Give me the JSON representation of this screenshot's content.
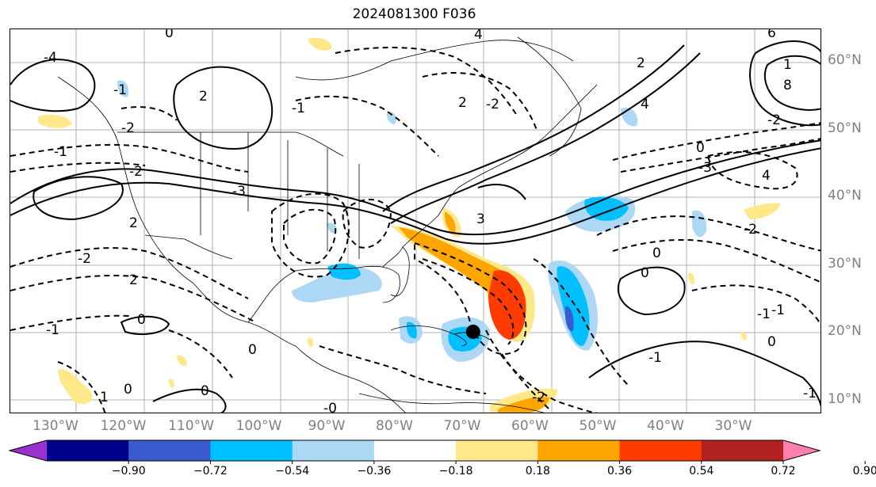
{
  "title": "2024081300 F036",
  "map": {
    "lon_labels": [
      "130°W",
      "120°W",
      "110°W",
      "100°W",
      "90°W",
      "80°W",
      "70°W",
      "60°W",
      "50°W",
      "40°W",
      "30°W"
    ],
    "lat_labels": [
      "60°N",
      "50°N",
      "40°N",
      "30°N",
      "20°N",
      "10°N"
    ],
    "contour_labels": [
      "-4",
      "-2",
      "0",
      "2",
      "-1",
      "-2",
      "-3",
      "4",
      "2",
      "-2",
      "-1",
      "3",
      "0",
      "2",
      "-2",
      "1",
      "-3",
      "4",
      "-2",
      "0",
      "-1",
      "0",
      "-1",
      "-1",
      "0",
      "1",
      "0",
      "6",
      "8",
      "4",
      "2",
      "-2",
      "2",
      "-1",
      "0",
      "0",
      "0",
      "-0",
      "-2",
      "-1",
      "-1"
    ],
    "storm_marker": {
      "lon": -68.5,
      "lat": 20.0
    }
  },
  "colorbar": {
    "ticks": [
      "−0.90",
      "−0.72",
      "−0.54",
      "−0.36",
      "−0.18",
      "0.18",
      "0.36",
      "0.54",
      "0.72",
      "0.90"
    ],
    "colors": [
      "#9b30d0",
      "#00008b",
      "#3a5ad0",
      "#00bfff",
      "#add8f5",
      "#ffffff",
      "#ffe88a",
      "#ffa500",
      "#ff3b00",
      "#b22222",
      "#ff80b0"
    ]
  }
}
